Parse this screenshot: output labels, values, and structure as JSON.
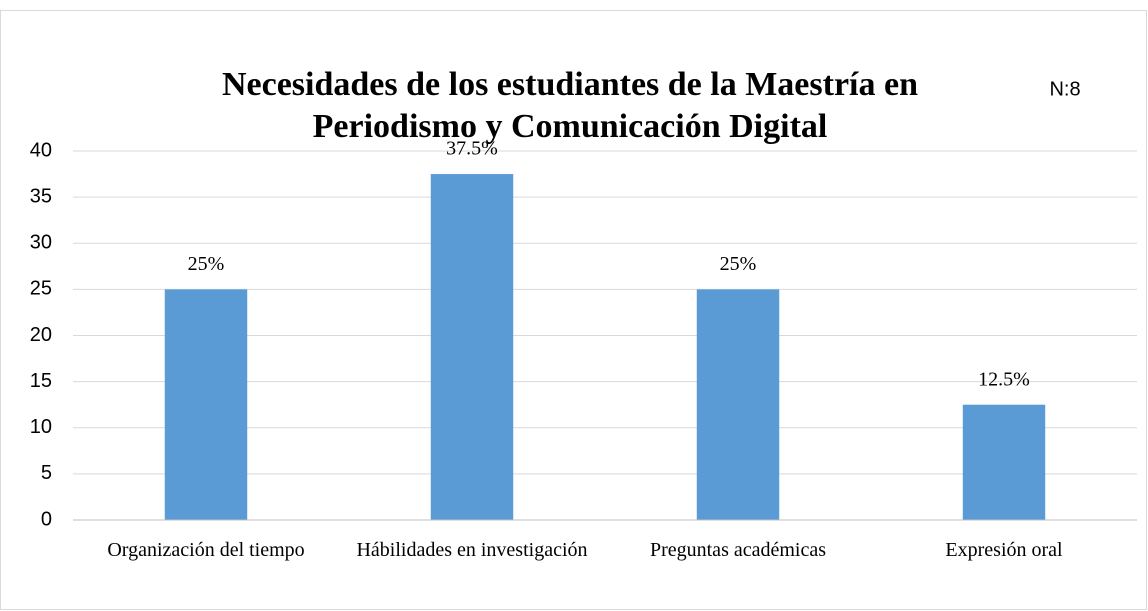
{
  "chart_data": {
    "type": "bar",
    "title": "Necesidades de los estudiantes de la Maestría en Periodismo y Comunicación Digital",
    "annotation": "N:8",
    "categories": [
      "Organización del tiempo",
      "Hábilidades en investigación",
      "Preguntas académicas",
      "Expresión oral"
    ],
    "values": [
      25,
      37.5,
      25,
      12.5
    ],
    "value_labels": [
      "25%",
      "37.5%",
      "25%",
      "12.5%"
    ],
    "color": "#5b9bd5",
    "ylim": [
      0,
      40
    ],
    "yticks": [
      0,
      5,
      10,
      15,
      20,
      25,
      30,
      35,
      40
    ],
    "grid": true
  }
}
